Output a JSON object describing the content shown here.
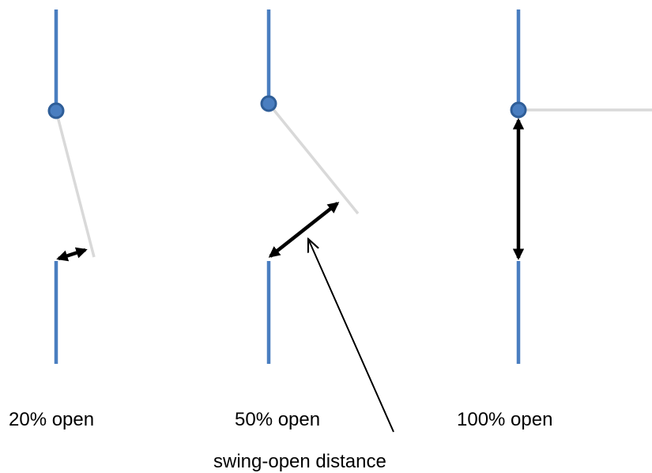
{
  "colors": {
    "wall": "#4A7EC0",
    "hinge": "#4A7EC0",
    "hinge_stroke": "#2F5E98",
    "door": "#D9D9D9",
    "arrow": "#000000"
  },
  "panels": [
    {
      "label": "20% open",
      "open_fraction": 0.2
    },
    {
      "label": "50% open",
      "open_fraction": 0.5
    },
    {
      "label": "100% open",
      "open_fraction": 1.0
    }
  ],
  "annotation": {
    "label": "swing-open distance"
  }
}
